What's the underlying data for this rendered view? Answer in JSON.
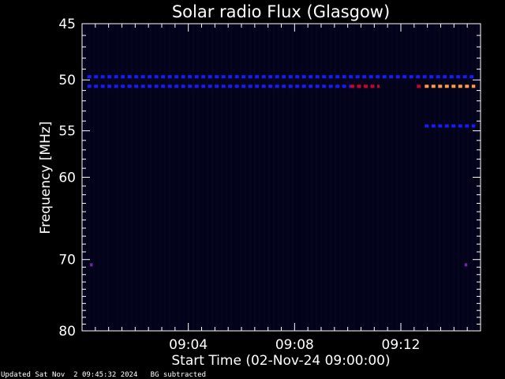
{
  "chart_data": {
    "type": "heatmap",
    "title": "Solar radio Flux (Glasgow)",
    "ylabel": "Frequency [MHz]",
    "xlabel": "Start Time (02-Nov-24 09:00:00)",
    "ylim": [
      45,
      80
    ],
    "yscale": "log",
    "yticks": [
      45,
      50,
      55,
      60,
      70,
      80
    ],
    "xlim_minutes": [
      0,
      15
    ],
    "xticks": [
      {
        "minute": 4,
        "label": "09:04"
      },
      {
        "minute": 8,
        "label": "09:08"
      },
      {
        "minute": 12,
        "label": "09:12"
      }
    ],
    "grid": false,
    "colors": {
      "background": "#02021a",
      "blue": "#1a1aff",
      "red": "#cc0033",
      "orange": "#ff9944",
      "purple": "#7722aa"
    },
    "features": [
      {
        "freq_mhz": 49.7,
        "minute_start": 0.2,
        "minute_end": 14.8,
        "color": "blue"
      },
      {
        "freq_mhz": 50.6,
        "minute_start": 0.2,
        "minute_end": 10.1,
        "color": "blue"
      },
      {
        "freq_mhz": 50.6,
        "minute_start": 10.1,
        "minute_end": 11.2,
        "color": "red"
      },
      {
        "freq_mhz": 50.6,
        "minute_start": 12.6,
        "minute_end": 12.8,
        "color": "red"
      },
      {
        "freq_mhz": 50.6,
        "minute_start": 12.9,
        "minute_end": 14.8,
        "color": "orange"
      },
      {
        "freq_mhz": 54.5,
        "minute_start": 12.9,
        "minute_end": 14.8,
        "color": "blue"
      },
      {
        "freq_mhz": 70.7,
        "minute_start": 0.3,
        "minute_end": 0.4,
        "color": "purple"
      },
      {
        "freq_mhz": 70.7,
        "minute_start": 14.4,
        "minute_end": 14.5,
        "color": "purple"
      }
    ]
  },
  "footer": {
    "updated": "Updated Sat Nov  2 09:45:32 2024",
    "note": "BG subtracted"
  }
}
